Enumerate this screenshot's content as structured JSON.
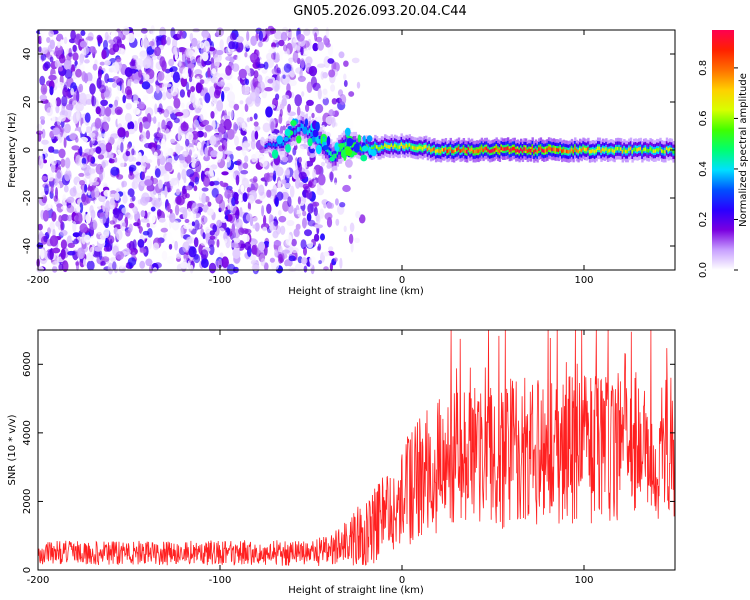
{
  "title": "GN05.2026.093.20.04.C44",
  "chart_data": [
    {
      "type": "heatmap",
      "name": "spectrogram",
      "xlabel": "Height of straight line (km)",
      "ylabel": "Frequency (Hz)",
      "xlim": [
        -200,
        150
      ],
      "ylim": [
        -50,
        50
      ],
      "xticks": [
        -200,
        -100,
        0,
        100
      ],
      "xtick_labels": [
        "-200",
        "-100",
        "0",
        "100"
      ],
      "yticks": [
        -40,
        -20,
        0,
        20,
        40
      ],
      "ytick_labels": [
        "-40",
        "-20",
        "0",
        "20",
        "40"
      ],
      "colorbar": {
        "label": "Normalized spectral amplitude",
        "range": [
          0,
          0.95
        ],
        "ticks": [
          0.0,
          0.2,
          0.4,
          0.6,
          0.8
        ],
        "tick_labels": [
          "0.0",
          "0.2",
          "0.4",
          "0.6",
          "0.8"
        ],
        "colormap": [
          "#ffffff",
          "#c8a0ff",
          "#7a00e0",
          "#2a00ff",
          "#0050ff",
          "#00e0ff",
          "#00ff70",
          "#40ff00",
          "#d8ff00",
          "#ffd000",
          "#ff7000",
          "#ff2000",
          "#ff0050"
        ]
      },
      "noise_region_x": [
        -200,
        -35
      ],
      "noise_fade_x": [
        -60,
        -20
      ],
      "noise_amplitude_range": [
        0.0,
        0.25
      ],
      "line_track": {
        "x": [
          -75,
          -65,
          -55,
          -45,
          -38,
          -30,
          -22,
          -15,
          0,
          10,
          20,
          40,
          60,
          80,
          100,
          120,
          150
        ],
        "freq_hz": [
          2,
          3,
          10,
          4,
          -3,
          3,
          1,
          1,
          2,
          1,
          0,
          0,
          0,
          0,
          0,
          0,
          0
        ],
        "amplitude": [
          0.3,
          0.35,
          0.35,
          0.4,
          0.45,
          0.45,
          0.5,
          0.6,
          0.65,
          0.7,
          0.75,
          0.85,
          0.9,
          0.88,
          0.75,
          0.65,
          0.6
        ],
        "halfwidth_hz": [
          2,
          3,
          4,
          4,
          4,
          4,
          3,
          3,
          3,
          3,
          3,
          3,
          3,
          3,
          3,
          3,
          3
        ]
      }
    },
    {
      "type": "line",
      "name": "snr",
      "xlabel": "Height of straight line (km)",
      "ylabel": "SNR (10 * v/v)",
      "xlim": [
        -200,
        150
      ],
      "ylim": [
        0,
        7000
      ],
      "xticks": [
        -200,
        -100,
        0,
        100
      ],
      "xtick_labels": [
        "-200",
        "-100",
        "0",
        "100"
      ],
      "yticks": [
        0,
        2000,
        4000,
        6000
      ],
      "ytick_labels": [
        "0",
        "2000",
        "4000",
        "6000"
      ],
      "color": "#ff2020",
      "trend": {
        "x": [
          -200,
          -50,
          -40,
          -30,
          -20,
          -10,
          0,
          10,
          20,
          40,
          60,
          80,
          100,
          120,
          150
        ],
        "mean": [
          500,
          500,
          600,
          800,
          1100,
          1500,
          2200,
          2700,
          3000,
          3300,
          3400,
          3500,
          3500,
          3600,
          3600
        ],
        "spread": [
          350,
          380,
          500,
          700,
          1000,
          1300,
          1600,
          1800,
          2000,
          2100,
          2200,
          2200,
          2200,
          2200,
          2100
        ]
      },
      "peak_value": 7000
    }
  ]
}
